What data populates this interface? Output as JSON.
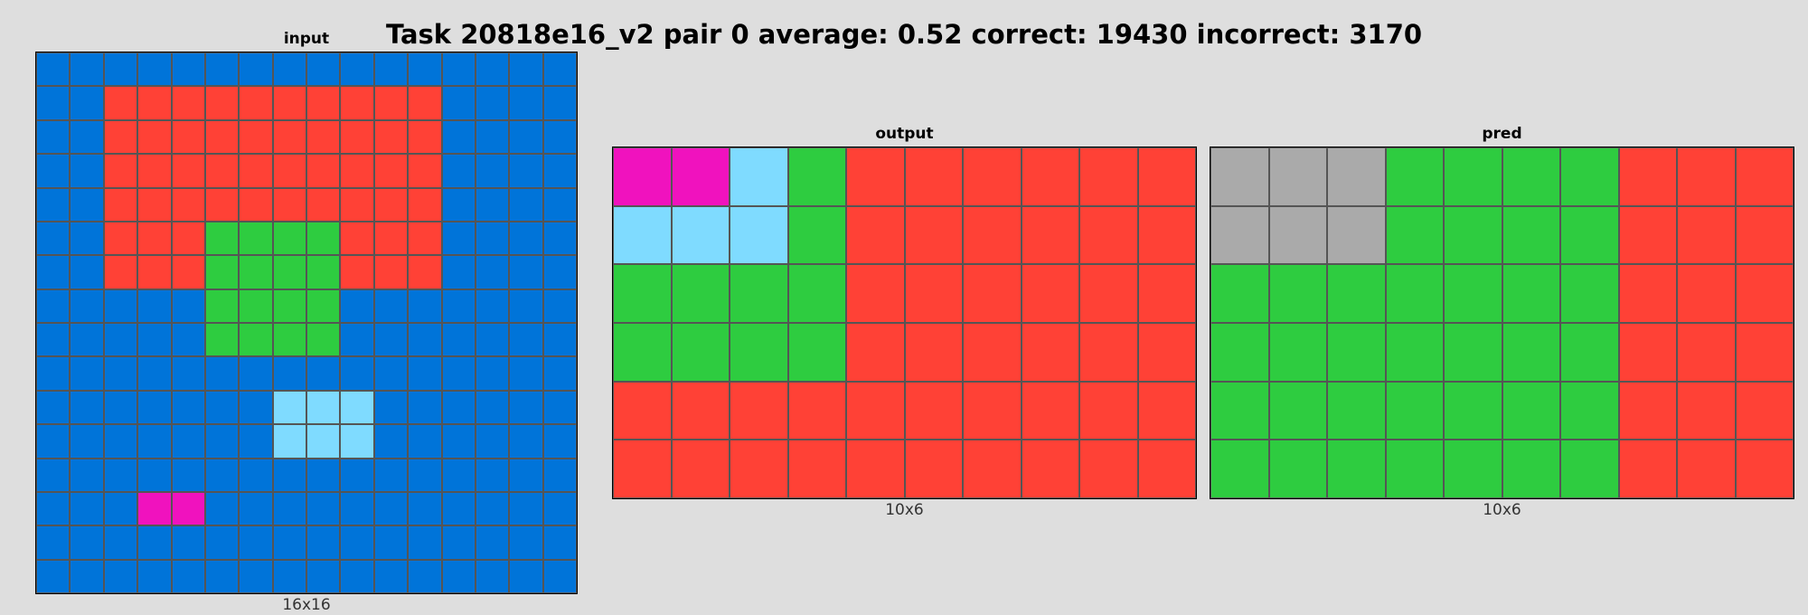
{
  "title": "Task 20818e16_v2 pair 0 average: 0.52 correct: 19430 incorrect: 3170",
  "palette": {
    "0": "#000000",
    "1": "#0074d9",
    "2": "#ff4136",
    "3": "#2ecc40",
    "4": "#ffdc00",
    "5": "#aaaaaa",
    "6": "#f012be",
    "7": "#ff851b",
    "8": "#7fdbff",
    "9": "#870c25"
  },
  "panels": [
    {
      "id": "input",
      "title": "input",
      "size_label": "16x16",
      "cells": [
        [
          1,
          1,
          1,
          1,
          1,
          1,
          1,
          1,
          1,
          1,
          1,
          1,
          1,
          1,
          1,
          1
        ],
        [
          1,
          1,
          2,
          2,
          2,
          2,
          2,
          2,
          2,
          2,
          2,
          2,
          1,
          1,
          1,
          1
        ],
        [
          1,
          1,
          2,
          2,
          2,
          2,
          2,
          2,
          2,
          2,
          2,
          2,
          1,
          1,
          1,
          1
        ],
        [
          1,
          1,
          2,
          2,
          2,
          2,
          2,
          2,
          2,
          2,
          2,
          2,
          1,
          1,
          1,
          1
        ],
        [
          1,
          1,
          2,
          2,
          2,
          2,
          2,
          2,
          2,
          2,
          2,
          2,
          1,
          1,
          1,
          1
        ],
        [
          1,
          1,
          2,
          2,
          2,
          3,
          3,
          3,
          3,
          2,
          2,
          2,
          1,
          1,
          1,
          1
        ],
        [
          1,
          1,
          2,
          2,
          2,
          3,
          3,
          3,
          3,
          2,
          2,
          2,
          1,
          1,
          1,
          1
        ],
        [
          1,
          1,
          1,
          1,
          1,
          3,
          3,
          3,
          3,
          1,
          1,
          1,
          1,
          1,
          1,
          1
        ],
        [
          1,
          1,
          1,
          1,
          1,
          3,
          3,
          3,
          3,
          1,
          1,
          1,
          1,
          1,
          1,
          1
        ],
        [
          1,
          1,
          1,
          1,
          1,
          1,
          1,
          1,
          1,
          1,
          1,
          1,
          1,
          1,
          1,
          1
        ],
        [
          1,
          1,
          1,
          1,
          1,
          1,
          1,
          8,
          8,
          8,
          1,
          1,
          1,
          1,
          1,
          1
        ],
        [
          1,
          1,
          1,
          1,
          1,
          1,
          1,
          8,
          8,
          8,
          1,
          1,
          1,
          1,
          1,
          1
        ],
        [
          1,
          1,
          1,
          1,
          1,
          1,
          1,
          1,
          1,
          1,
          1,
          1,
          1,
          1,
          1,
          1
        ],
        [
          1,
          1,
          1,
          6,
          6,
          1,
          1,
          1,
          1,
          1,
          1,
          1,
          1,
          1,
          1,
          1
        ],
        [
          1,
          1,
          1,
          1,
          1,
          1,
          1,
          1,
          1,
          1,
          1,
          1,
          1,
          1,
          1,
          1
        ],
        [
          1,
          1,
          1,
          1,
          1,
          1,
          1,
          1,
          1,
          1,
          1,
          1,
          1,
          1,
          1,
          1
        ]
      ]
    },
    {
      "id": "output",
      "title": "output",
      "size_label": "10x6",
      "cells": [
        [
          6,
          6,
          8,
          3,
          2,
          2,
          2,
          2,
          2,
          2
        ],
        [
          8,
          8,
          8,
          3,
          2,
          2,
          2,
          2,
          2,
          2
        ],
        [
          3,
          3,
          3,
          3,
          2,
          2,
          2,
          2,
          2,
          2
        ],
        [
          3,
          3,
          3,
          3,
          2,
          2,
          2,
          2,
          2,
          2
        ],
        [
          2,
          2,
          2,
          2,
          2,
          2,
          2,
          2,
          2,
          2
        ],
        [
          2,
          2,
          2,
          2,
          2,
          2,
          2,
          2,
          2,
          2
        ]
      ]
    },
    {
      "id": "pred",
      "title": "pred",
      "size_label": "10x6",
      "cells": [
        [
          5,
          5,
          5,
          3,
          3,
          3,
          3,
          2,
          2,
          2
        ],
        [
          5,
          5,
          5,
          3,
          3,
          3,
          3,
          2,
          2,
          2
        ],
        [
          3,
          3,
          3,
          3,
          3,
          3,
          3,
          2,
          2,
          2
        ],
        [
          3,
          3,
          3,
          3,
          3,
          3,
          3,
          2,
          2,
          2
        ],
        [
          3,
          3,
          3,
          3,
          3,
          3,
          3,
          2,
          2,
          2
        ],
        [
          3,
          3,
          3,
          3,
          3,
          3,
          3,
          2,
          2,
          2
        ]
      ]
    }
  ]
}
